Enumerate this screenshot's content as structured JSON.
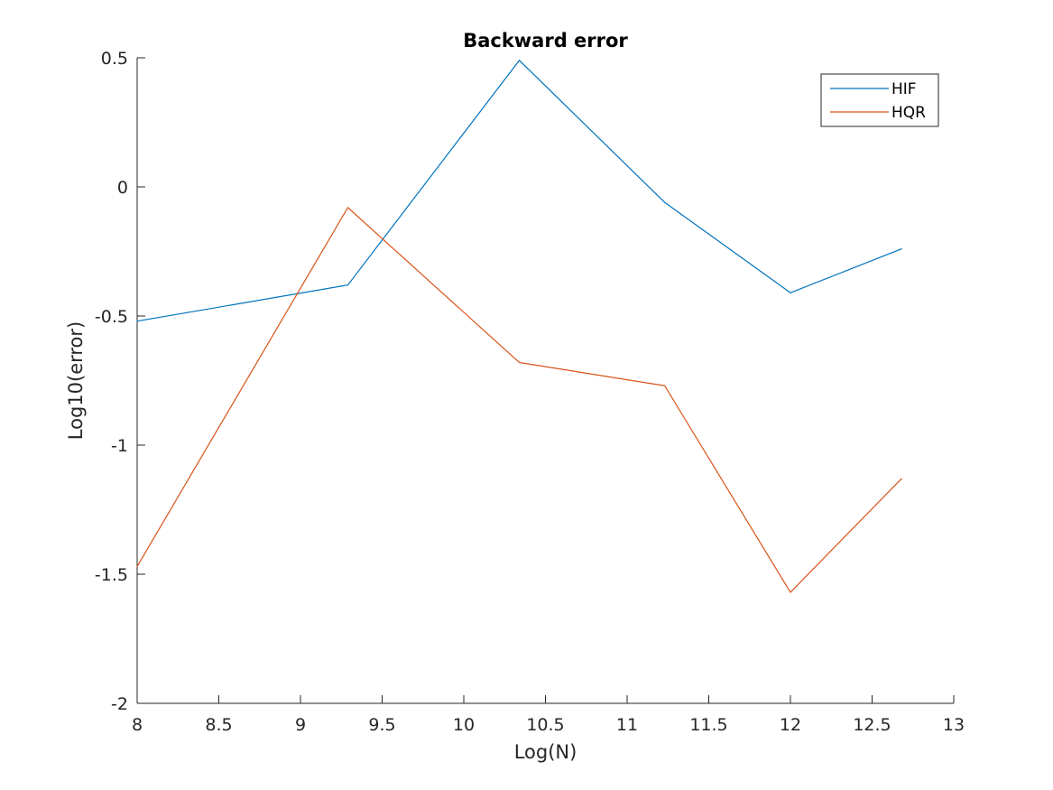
{
  "chart_data": {
    "type": "line",
    "title": "Backward error",
    "xlabel": "Log(N)",
    "ylabel": "Log10(error)",
    "xlim": [
      8,
      13
    ],
    "ylim": [
      -2,
      0.5
    ],
    "xticks": [
      8,
      8.5,
      9,
      9.5,
      10,
      10.5,
      11,
      11.5,
      12,
      12.5,
      13
    ],
    "xtick_labels": [
      "8",
      "8.5",
      "9",
      "9.5",
      "10",
      "10.5",
      "11",
      "11.5",
      "12",
      "12.5",
      "13"
    ],
    "yticks": [
      -2,
      -1.5,
      -1,
      -0.5,
      0,
      0.5
    ],
    "ytick_labels": [
      "-2",
      "-1.5",
      "-1",
      "-0.5",
      "0",
      "0.5"
    ],
    "grid": false,
    "legend_position": "top-right",
    "x": [
      8,
      9.29,
      10.34,
      11.23,
      12,
      12.68
    ],
    "series": [
      {
        "name": "HIF",
        "color": "#0072BD",
        "values": [
          -0.52,
          -0.38,
          0.49,
          -0.06,
          -0.41,
          -0.24
        ]
      },
      {
        "name": "HQR",
        "color": "#D95319",
        "values": [
          -1.47,
          -0.08,
          -0.68,
          -0.77,
          -1.57,
          -1.13
        ]
      }
    ]
  }
}
